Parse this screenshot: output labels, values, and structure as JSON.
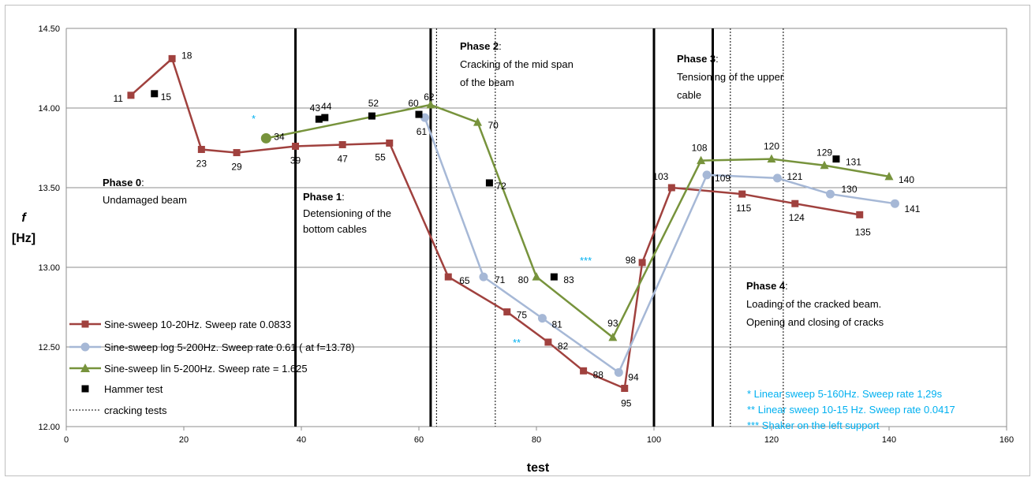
{
  "chart_data": {
    "type": "line",
    "xlabel": "test",
    "ylabel_symbol": "f",
    "ylabel_unit": "[Hz]",
    "xlim": [
      0,
      160
    ],
    "ylim": [
      12.0,
      14.5
    ],
    "x_ticks": [
      "0",
      "20",
      "40",
      "60",
      "80",
      "100",
      "120",
      "140",
      "160"
    ],
    "y_ticks": [
      "12.00",
      "12.50",
      "13.00",
      "13.50",
      "14.00",
      "14.50"
    ],
    "grid": "horizontal",
    "legend_position": "bottom-left",
    "series": [
      {
        "name": "Sine-sweep 10-20Hz. Sweep rate 0.0833",
        "color": "#a0413e",
        "marker": "square",
        "points": [
          {
            "x": 11,
            "y": 14.08,
            "label": "11"
          },
          {
            "x": 18,
            "y": 14.31,
            "label": "18"
          },
          {
            "x": 23,
            "y": 13.74,
            "label": "23"
          },
          {
            "x": 29,
            "y": 13.72,
            "label": "29"
          },
          {
            "x": 39,
            "y": 13.76,
            "label": "39"
          },
          {
            "x": 47,
            "y": 13.77,
            "label": "47"
          },
          {
            "x": 55,
            "y": 13.78,
            "label": "55"
          },
          {
            "x": 65,
            "y": 12.94,
            "label": "65"
          },
          {
            "x": 75,
            "y": 12.72,
            "label": "75"
          },
          {
            "x": 82,
            "y": 12.53,
            "label": "82"
          },
          {
            "x": 88,
            "y": 12.35,
            "label": "88"
          },
          {
            "x": 95,
            "y": 12.24,
            "label": "95"
          },
          {
            "x": 98,
            "y": 13.03,
            "label": "98"
          },
          {
            "x": 103,
            "y": 13.5,
            "label": "103"
          },
          {
            "x": 115,
            "y": 13.46,
            "label": "115"
          },
          {
            "x": 124,
            "y": 13.4,
            "label": "124"
          },
          {
            "x": 135,
            "y": 13.33,
            "label": "135"
          }
        ]
      },
      {
        "name": "Sine-sweep log 5-200Hz. Sweep rate 0.61  ( at f=13.78)",
        "color": "#a6b8d6",
        "marker": "circle",
        "points": [
          {
            "x": 61,
            "y": 13.94,
            "label": "61"
          },
          {
            "x": 71,
            "y": 12.94,
            "label": "71"
          },
          {
            "x": 81,
            "y": 12.68,
            "label": "81"
          },
          {
            "x": 94,
            "y": 12.34,
            "label": "94"
          },
          {
            "x": 109,
            "y": 13.58,
            "label": "109"
          },
          {
            "x": 121,
            "y": 13.56,
            "label": "121"
          },
          {
            "x": 130,
            "y": 13.46,
            "label": "130"
          },
          {
            "x": 141,
            "y": 13.4,
            "label": "141"
          }
        ]
      },
      {
        "name": "Sine-sweep lin 5-200Hz. Sweep rate = 1.625",
        "color": "#77933c",
        "marker": "triangle",
        "points": [
          {
            "x": 34,
            "y": 13.81,
            "label": "34"
          },
          {
            "x": 62,
            "y": 14.02,
            "label": "62"
          },
          {
            "x": 70,
            "y": 13.91,
            "label": "70"
          },
          {
            "x": 80,
            "y": 12.94,
            "label": "80"
          },
          {
            "x": 93,
            "y": 12.56,
            "label": "93"
          },
          {
            "x": 108,
            "y": 13.67,
            "label": "108"
          },
          {
            "x": 120,
            "y": 13.68,
            "label": "120"
          },
          {
            "x": 129,
            "y": 13.64,
            "label": "129"
          },
          {
            "x": 140,
            "y": 13.57,
            "label": "140"
          }
        ]
      },
      {
        "name": "Hammer test",
        "color": "#000000",
        "marker": "square-markers-only",
        "points": [
          {
            "x": 15,
            "y": 14.09,
            "label": "15"
          },
          {
            "x": 43,
            "y": 13.93,
            "label": "43"
          },
          {
            "x": 44,
            "y": 13.94,
            "label": "44"
          },
          {
            "x": 52,
            "y": 13.95,
            "label": "52"
          },
          {
            "x": 60,
            "y": 13.96,
            "label": "60"
          },
          {
            "x": 72,
            "y": 13.53,
            "label": "72"
          },
          {
            "x": 83,
            "y": 12.94,
            "label": "83"
          },
          {
            "x": 131,
            "y": 13.68,
            "label": "131"
          }
        ]
      }
    ],
    "phase_lines": [
      39,
      62,
      100,
      110
    ],
    "cracking_test_lines": [
      63,
      73,
      113,
      122
    ],
    "legend": {
      "s0": "Sine-sweep 10-20Hz. Sweep rate 0.0833",
      "s1": "Sine-sweep log 5-200Hz. Sweep rate 0.61  ( at f=13.78)",
      "s2": "Sine-sweep lin 5-200Hz. Sweep rate = 1.625",
      "s3": "Hammer test",
      "s4": "cracking tests"
    },
    "annotations": {
      "phase0": {
        "title": "Phase 0",
        "line1": "Undamaged beam"
      },
      "phase1": {
        "title": "Phase 1",
        "line1": "Detensioning of the",
        "line2": "bottom cables"
      },
      "phase2": {
        "title": "Phase 2",
        "line1": "Cracking of the mid span",
        "line2": "of the beam"
      },
      "phase3": {
        "title": "Phase 3",
        "line1": "Tensioning of the upper",
        "line2": "cable"
      },
      "phase4": {
        "title": "Phase 4",
        "line1": "Loading of the cracked beam.",
        "line2": "Opening and closing of cracks"
      },
      "colon": ":",
      "star1": "*",
      "star2": "**",
      "star3": "***",
      "note1": "* Linear sweep 5-160Hz. Sweep rate 1,29s",
      "note2": "** Linear sweep 10-15 Hz. Sweep rate 0.0417",
      "note3": "*** Shaker on the left support"
    }
  }
}
